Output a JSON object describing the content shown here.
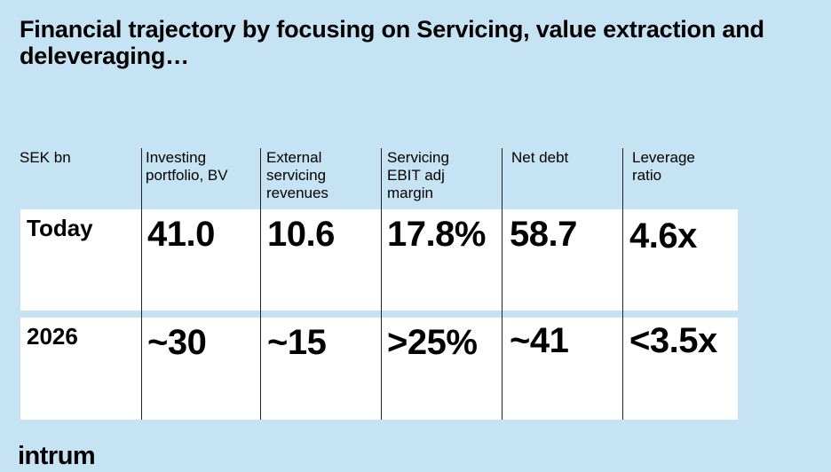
{
  "title": "Financial trajectory by focusing on Servicing, value extraction and deleveraging…",
  "unit_label": "SEK bn",
  "columns": [
    "Investing portfolio, BV",
    "External servicing revenues",
    "Servicing EBIT adj margin",
    "Net debt",
    "Leverage ratio"
  ],
  "rows": [
    {
      "label": "Today",
      "values": [
        "41.0",
        "10.6",
        "17.8%",
        "58.7",
        "4.6x"
      ]
    },
    {
      "label": "2026",
      "values": [
        "~30",
        "~15",
        ">25%",
        "~41",
        "<3.5x"
      ]
    }
  ],
  "logo_text": "intrum",
  "colors": {
    "background": "#c5e3f3",
    "band": "#ffffff",
    "text": "#000000"
  }
}
